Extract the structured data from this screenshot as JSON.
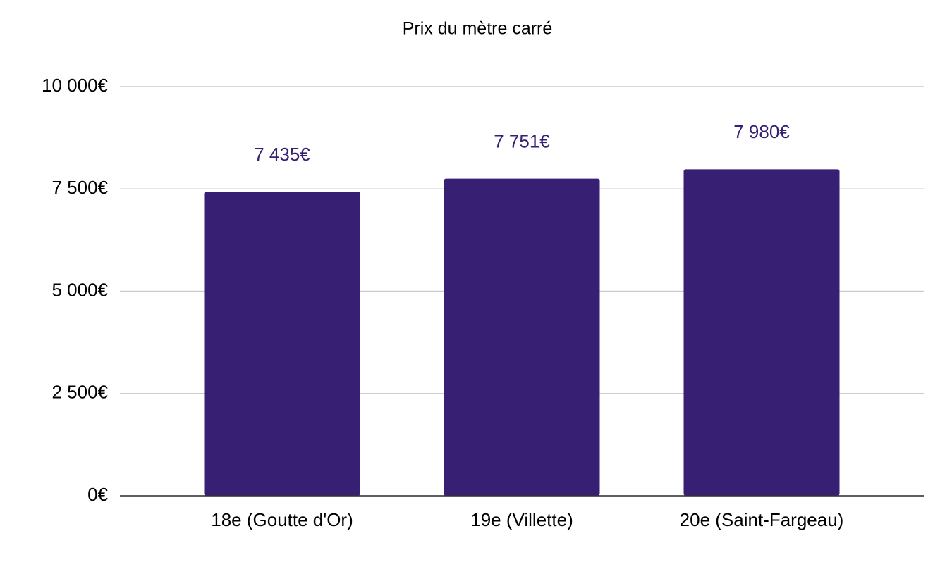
{
  "chart_data": {
    "type": "bar",
    "title": "Prix du mètre carré",
    "categories": [
      "18e (Goutte d'Or)",
      "19e (Villette)",
      "20e (Saint-Fargeau)"
    ],
    "values": [
      7435,
      7751,
      7980
    ],
    "value_labels": [
      "7 435€",
      "7 751€",
      "7 980€"
    ],
    "color": "#371f73",
    "ylim": [
      0,
      10000
    ],
    "yticks": [
      {
        "value": 0,
        "label": "0€"
      },
      {
        "value": 2500,
        "label": "2 500€"
      },
      {
        "value": 5000,
        "label": "5 000€"
      },
      {
        "value": 7500,
        "label": "7 500€"
      },
      {
        "value": 10000,
        "label": "10 000€"
      }
    ],
    "grid": true
  }
}
